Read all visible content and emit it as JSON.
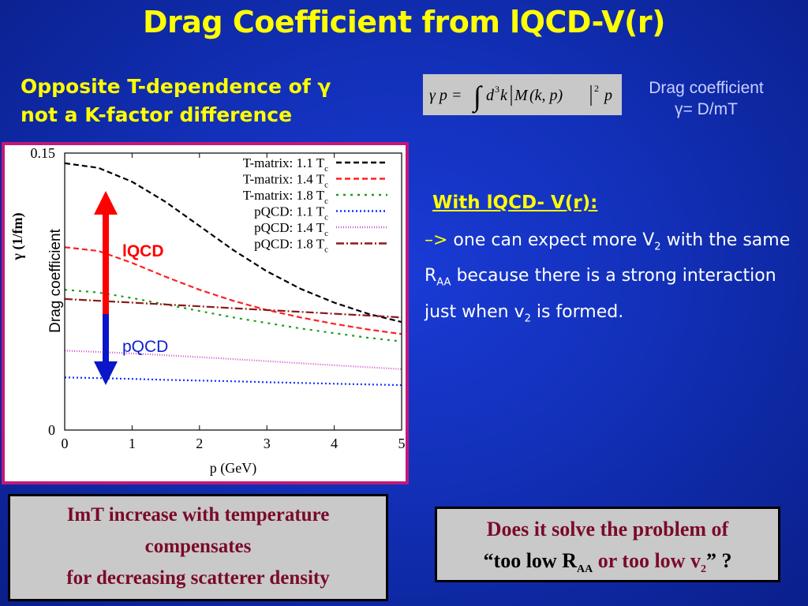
{
  "title": "Drag Coefficient from lQCD-V(r)",
  "subtitle": {
    "line1": "Opposite T-dependence of γ",
    "line2": "not a K-factor difference"
  },
  "formula": {
    "lhs": "γ p =",
    "integral": "∫",
    "body": "d³k |M(k, p)|² p",
    "d": "d",
    "exp3": "3",
    "k": "k",
    "M": "M",
    "args": "(k, p)",
    "exp2": "2",
    "p": "p"
  },
  "drag_note": {
    "line1": "Drag coefficient",
    "line2": "γ= D/mT"
  },
  "lqcd_heading": "With lQCD- V(r):",
  "bullet": {
    "arrow": "–>",
    "t1": " one can expect more V",
    "s1": "2",
    "t2": " with the same R",
    "s2": "AA",
    "t3": " because there is a strong interaction just when v",
    "s3": "2",
    "t4": " is formed."
  },
  "box_left": {
    "line1": "ImT increase with temperature",
    "line2": "compensates",
    "line3": "for decreasing scatterer density"
  },
  "box_right": {
    "t1": "Does it solve the problem of",
    "t2": "“too low R",
    "s1": "AA",
    "t3": " or too low v",
    "s2": "2",
    "t4": "” ?"
  },
  "annotations": {
    "drag_label": "Drag coefficient",
    "lqcd_label": "lQCD",
    "pqcd_label": "pQCD"
  },
  "colors": {
    "lqcd_arrow": "#ff0000",
    "pqcd_arrow": "#0a16c8",
    "lqcd_text": "#ff0000",
    "pqcd_text": "#1020d0"
  },
  "chart_data": {
    "type": "line",
    "xlabel": "p (GeV)",
    "ylabel": "γ (1/fm)",
    "xlim": [
      0,
      5
    ],
    "ylim": [
      0,
      0.15
    ],
    "x_ticks": [
      "0",
      "1",
      "2",
      "3",
      "4",
      "5"
    ],
    "y_ticks": [
      "0",
      "0.15"
    ],
    "legend_position": "top-right",
    "grid": false,
    "x": [
      0,
      0.5,
      1,
      1.5,
      2,
      2.5,
      3,
      3.5,
      4,
      4.5,
      5
    ],
    "series": [
      {
        "name": "T-matrix: 1.1 T",
        "name_sub": "c",
        "color": "#000000",
        "dash": "7,4",
        "values": [
          0.1445,
          0.142,
          0.1345,
          0.1235,
          0.1105,
          0.0975,
          0.086,
          0.0765,
          0.069,
          0.063,
          0.0585
        ]
      },
      {
        "name": "T-matrix: 1.4 T",
        "name_sub": "c",
        "color": "#ff2020",
        "dash": "7,4",
        "values": [
          0.099,
          0.097,
          0.0905,
          0.083,
          0.076,
          0.07,
          0.065,
          0.061,
          0.0575,
          0.0545,
          0.052
        ]
      },
      {
        "name": "T-matrix: 1.8 T",
        "name_sub": "c",
        "color": "#1c9c1c",
        "dash": "3,6",
        "values": [
          0.076,
          0.0745,
          0.0715,
          0.068,
          0.0645,
          0.061,
          0.058,
          0.055,
          0.0525,
          0.05,
          0.048
        ]
      },
      {
        "name": "pQCD: 1.1 T",
        "name_sub": "c",
        "color": "#1030ff",
        "dash": "2,3",
        "values": [
          0.0285,
          0.0281,
          0.0277,
          0.0272,
          0.0268,
          0.0264,
          0.0259,
          0.0255,
          0.0251,
          0.0247,
          0.0243
        ]
      },
      {
        "name": "pQCD: 1.4 T",
        "name_sub": "c",
        "color": "#d050d0",
        "dash": "1,2",
        "values": [
          0.043,
          0.0423,
          0.0415,
          0.0405,
          0.0395,
          0.0384,
          0.0373,
          0.0362,
          0.0351,
          0.034,
          0.033
        ]
      },
      {
        "name": "pQCD: 1.8 T",
        "name_sub": "c",
        "color": "#8b1a1a",
        "dash": "10,3,2,3",
        "values": [
          0.071,
          0.07,
          0.069,
          0.068,
          0.067,
          0.066,
          0.065,
          0.064,
          0.063,
          0.062,
          0.061
        ]
      }
    ]
  }
}
